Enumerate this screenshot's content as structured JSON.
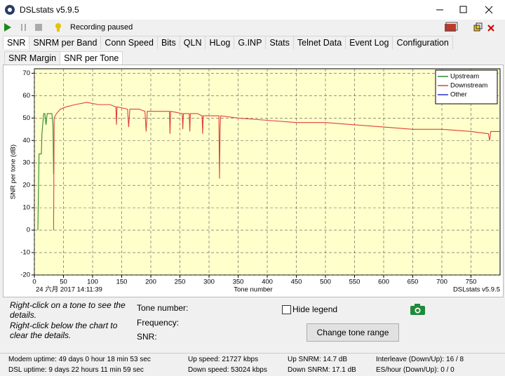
{
  "window": {
    "title": "DSLstats v5.9.5"
  },
  "toolbar": {
    "status": "Recording paused"
  },
  "tabs": [
    "SNR",
    "SNRM per Band",
    "Conn Speed",
    "Bits",
    "QLN",
    "HLog",
    "G.INP",
    "Stats",
    "Telnet Data",
    "Event Log",
    "Configuration"
  ],
  "subtabs": [
    "SNR Margin",
    "SNR per Tone"
  ],
  "chart_data": {
    "type": "line",
    "xlabel": "Tone number",
    "ylabel": "SNR per tone (dB)",
    "annotations": {
      "timestamp": "24 六月 2017 14:11:39",
      "watermark": "DSLstats v5.9.5"
    },
    "xlim": [
      0,
      800
    ],
    "ylim": [
      -20,
      72
    ],
    "xticks": [
      0,
      50,
      100,
      150,
      200,
      250,
      300,
      350,
      400,
      450,
      500,
      550,
      600,
      650,
      700,
      750
    ],
    "yticks": [
      -20,
      -10,
      0,
      10,
      20,
      30,
      40,
      50,
      60,
      70
    ],
    "grid": true,
    "legend": "upper-right",
    "series": [
      {
        "name": "Upstream",
        "color": "#2e8b2e",
        "x": [
          6,
          7,
          8,
          12,
          13,
          16,
          18,
          20,
          22,
          30,
          32,
          33
        ],
        "values": [
          0,
          17,
          34,
          34,
          43,
          52,
          52,
          47,
          52,
          52,
          47,
          25
        ]
      },
      {
        "name": "Downstream",
        "color": "#e0403a",
        "x": [
          33,
          34,
          38,
          45,
          55,
          70,
          90,
          110,
          130,
          140,
          141,
          142,
          160,
          162,
          164,
          180,
          190,
          192,
          194,
          210,
          232,
          233,
          234,
          254,
          255,
          256,
          266,
          267,
          268,
          280,
          288,
          289,
          290,
          310,
          317,
          318,
          319,
          320,
          350,
          400,
          450,
          500,
          550,
          600,
          650,
          700,
          750,
          780,
          782,
          784,
          800
        ],
        "values": [
          0,
          50,
          52,
          54,
          55,
          56,
          57,
          56,
          56,
          55,
          47,
          55,
          54,
          46,
          54,
          54,
          53,
          44,
          53,
          53,
          53,
          43,
          53,
          52,
          45,
          52,
          52,
          44,
          52,
          52,
          51,
          43,
          51,
          51,
          51,
          23,
          45,
          51,
          50,
          49,
          48,
          48,
          47,
          46,
          45,
          45,
          44,
          43,
          40,
          44,
          44
        ]
      },
      {
        "name": "Other",
        "color": "#2c2cc8",
        "x": [],
        "values": []
      }
    ]
  },
  "details": {
    "hint1": "Right-click on a tone to see the details.",
    "hint2": "Right-click below the chart to clear the details.",
    "tone_number": "Tone number:",
    "frequency": "Frequency:",
    "snr": "SNR:",
    "hide_legend": "Hide legend",
    "button": "Change tone range"
  },
  "status": [
    [
      "Modem uptime: 49 days 0 hour 18 min 53 sec",
      "DSL uptime: 9 days 22 hours 11 min 59 sec"
    ],
    [
      "Up speed: 21727 kbps",
      "Down speed: 53024 kbps"
    ],
    [
      "Up SNRM: 14.7 dB",
      "Down SNRM: 17.1 dB"
    ],
    [
      "Interleave (Down/Up): 16 / 8",
      "ES/hour (Down/Up): 0 / 0"
    ]
  ]
}
